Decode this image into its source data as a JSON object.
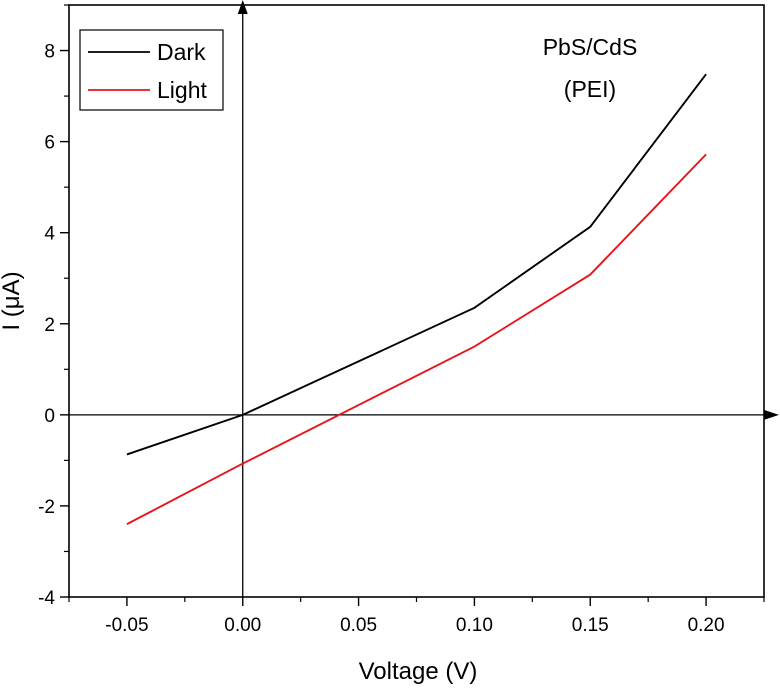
{
  "chart_data": {
    "type": "line",
    "xlabel": "Voltage (V)",
    "ylabel": "I (μA)",
    "xlim": [
      -0.075,
      0.225
    ],
    "ylim": [
      -4,
      9
    ],
    "x_ticks": [
      -0.05,
      0.0,
      0.05,
      0.1,
      0.15,
      0.2
    ],
    "x_tick_labels": [
      "-0.05",
      "0.00",
      "0.05",
      "0.10",
      "0.15",
      "0.20"
    ],
    "y_ticks": [
      -4,
      -2,
      0,
      2,
      4,
      6,
      8
    ],
    "y_tick_labels": [
      "-4",
      "-2",
      "0",
      "2",
      "4",
      "6",
      "8"
    ],
    "annotation": [
      "PbS/CdS",
      "(PEI)"
    ],
    "legend_position": "top-left",
    "series": [
      {
        "name": "Dark",
        "color": "#000000",
        "x": [
          -0.05,
          0.0,
          0.1,
          0.15,
          0.2
        ],
        "y": [
          -0.87,
          0.0,
          2.35,
          4.13,
          7.48
        ]
      },
      {
        "name": "Light",
        "color": "#e8141a",
        "x": [
          -0.05,
          0.0,
          0.1,
          0.15,
          0.2
        ],
        "y": [
          -2.4,
          -1.07,
          1.5,
          3.08,
          5.72
        ]
      }
    ]
  }
}
